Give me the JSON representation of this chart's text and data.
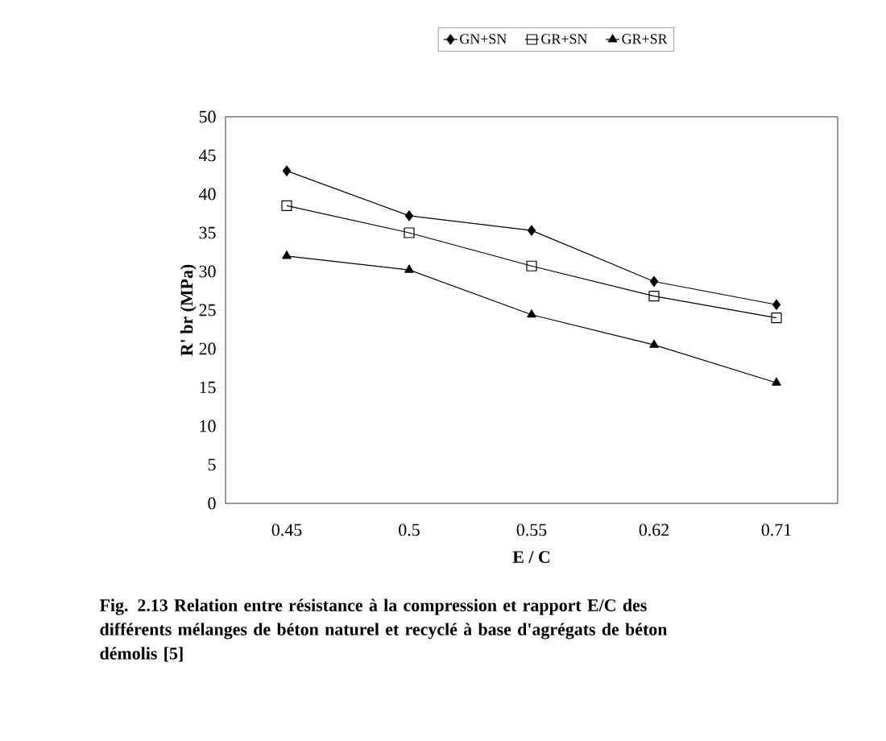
{
  "chart_data": {
    "type": "line",
    "xlabel": "E / C",
    "ylabel": "R' br (MPa)",
    "categories": [
      "0.45",
      "0.5",
      "0.55",
      "0.62",
      "0.71"
    ],
    "series": [
      {
        "name": "GN+SN",
        "color": "#000000",
        "marker": "diamond",
        "values": [
          43,
          37.2,
          35.3,
          28.7,
          25.7
        ]
      },
      {
        "name": "GR+SN",
        "color": "#000000",
        "marker": "square",
        "values": [
          38.5,
          35,
          30.7,
          26.8,
          24
        ]
      },
      {
        "name": "GR+SR",
        "color": "#000000",
        "marker": "triangle",
        "values": [
          32,
          30.2,
          24.4,
          20.5,
          15.6
        ]
      }
    ],
    "ylim": [
      0,
      50
    ],
    "yticks": [
      0,
      5,
      10,
      15,
      20,
      25,
      30,
      35,
      40,
      45,
      50
    ],
    "grid": false,
    "legend": "top",
    "line_style": "solid",
    "annotations": [
      "Fig. 2.13 Relation entre résistance à la compression et rapport E/C des différents mélanges de béton naturel et recyclé à base d'agrégats de béton démolis [5]"
    ]
  }
}
